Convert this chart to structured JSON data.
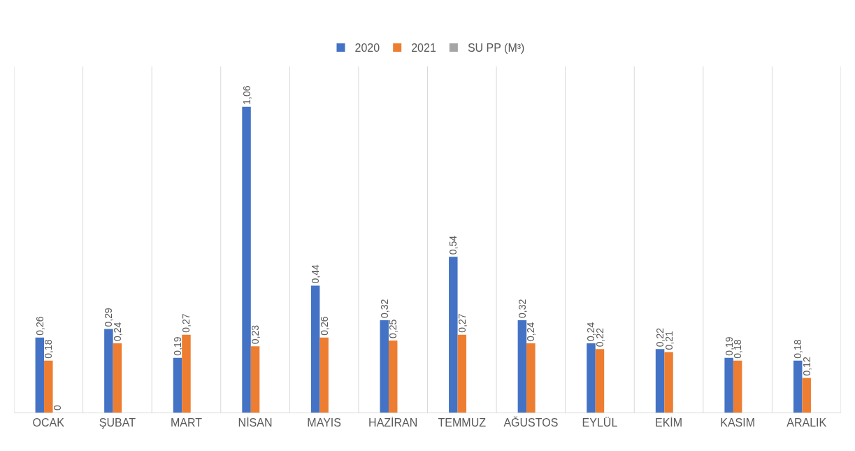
{
  "chart_data": {
    "type": "bar",
    "categories": [
      "OCAK",
      "ŞUBAT",
      "MART",
      "NİSAN",
      "MAYIS",
      "HAZİRAN",
      "TEMMUZ",
      "AĞUSTOS",
      "EYLÜL",
      "EKİM",
      "KASIM",
      "ARALIK"
    ],
    "series": [
      {
        "name": "2020",
        "color": "#4472c4",
        "values": [
          0.26,
          0.29,
          0.19,
          1.06,
          0.44,
          0.32,
          0.54,
          0.32,
          0.24,
          0.22,
          0.19,
          0.18
        ],
        "value_labels": [
          "0,26",
          "0,29",
          "0,19",
          "1,06",
          "0,44",
          "0,32",
          "0,54",
          "0,32",
          "0,24",
          "0,22",
          "0,19",
          "0,18"
        ]
      },
      {
        "name": "2021",
        "color": "#ed7d31",
        "values": [
          0.18,
          0.24,
          0.27,
          0.23,
          0.26,
          0.25,
          0.27,
          0.24,
          0.22,
          0.21,
          0.18,
          0.12
        ],
        "value_labels": [
          "0,18",
          "0,24",
          "0,27",
          "0,23",
          "0,26",
          "0,25",
          "0,27",
          "0,24",
          "0,22",
          "0,21",
          "0,18",
          "0,12"
        ]
      },
      {
        "name": "SU PP (M³)",
        "color": "#a5a5a5",
        "values": [
          0,
          null,
          null,
          null,
          null,
          null,
          null,
          null,
          null,
          null,
          null,
          null
        ],
        "value_labels": [
          "0",
          null,
          null,
          null,
          null,
          null,
          null,
          null,
          null,
          null,
          null,
          null
        ]
      }
    ],
    "ylim": [
      0,
      1.2
    ],
    "tick_labels": "x",
    "grid": "x",
    "legend": "top"
  }
}
